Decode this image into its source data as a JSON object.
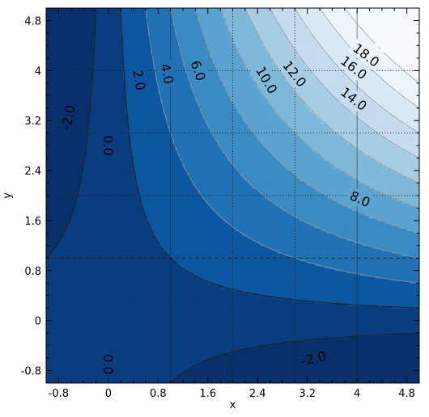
{
  "chart_data": {
    "type": "contour",
    "function": "z = x*y - 1",
    "xlabel": "x",
    "ylabel": "y",
    "xlim": [
      -1.0,
      5.0
    ],
    "ylim": [
      -1.0,
      5.0
    ],
    "x_ticks": [
      -0.8,
      0,
      0.8,
      1.6,
      2.4,
      3.2,
      4,
      4.8
    ],
    "x_tick_labels": [
      "-0.8",
      "0",
      "0.8",
      "1.6",
      "2.4",
      "3.2",
      "4",
      "4.8"
    ],
    "y_ticks": [
      -0.8,
      0,
      0.8,
      1.6,
      2.4,
      3.2,
      4,
      4.8
    ],
    "y_tick_labels": [
      "-0.8",
      "0",
      "0.8",
      "1.6",
      "2.4",
      "3.2",
      "4",
      "4.8"
    ],
    "levels": [
      -2,
      0,
      2,
      4,
      6,
      8,
      10,
      12,
      14,
      16,
      18
    ],
    "colormap": [
      "#08306b",
      "#08519c",
      "#2171b5",
      "#4292c6",
      "#6baed6",
      "#9ecae1",
      "#c6dbef",
      "#deebf7",
      "#f7fbff"
    ],
    "dark_line_color": "#222222",
    "light_line_color": "#999999",
    "grid_lines_vertical": [
      {
        "x": 1.0,
        "style": "solid"
      },
      {
        "x": 2.0,
        "style": "dotted"
      },
      {
        "x": 3.0,
        "style": "dotted"
      },
      {
        "x": 4.0,
        "style": "solid"
      }
    ],
    "grid_lines_horizontal": [
      {
        "y": 4.0,
        "style": "dotted"
      },
      {
        "y": 3.0,
        "style": "dotted"
      },
      {
        "y": 2.0,
        "style": "dotted"
      },
      {
        "y": 1.0,
        "style": "dashed"
      }
    ],
    "contour_labels": [
      {
        "text": "18.0",
        "x": 4.15,
        "y": 4.25,
        "rot": 38
      },
      {
        "text": "16.0",
        "x": 3.95,
        "y": 4.05,
        "rot": 38
      },
      {
        "text": "14.0",
        "x": 3.95,
        "y": 3.55,
        "rot": 38
      },
      {
        "text": "12.0",
        "x": 3.0,
        "y": 3.95,
        "rot": 52
      },
      {
        "text": "10.0",
        "x": 2.55,
        "y": 3.85,
        "rot": 60
      },
      {
        "text": "8.0",
        "x": 4.05,
        "y": 1.95,
        "rot": 25
      },
      {
        "text": "6.0",
        "x": 1.45,
        "y": 4.0,
        "rot": 70
      },
      {
        "text": "4.0",
        "x": 0.95,
        "y": 3.95,
        "rot": 77
      },
      {
        "text": "2.0",
        "x": 0.5,
        "y": 3.85,
        "rot": 80
      },
      {
        "text": "0.0",
        "x": 0.0,
        "y": 2.8,
        "rot": 90
      },
      {
        "text": "0.0",
        "x": 0.0,
        "y": -0.7,
        "rot": 90
      },
      {
        "text": "-2.0",
        "x": -0.65,
        "y": 3.25,
        "rot": -78
      },
      {
        "text": "-2.0",
        "x": 3.3,
        "y": -0.6,
        "rot": -13
      }
    ]
  }
}
